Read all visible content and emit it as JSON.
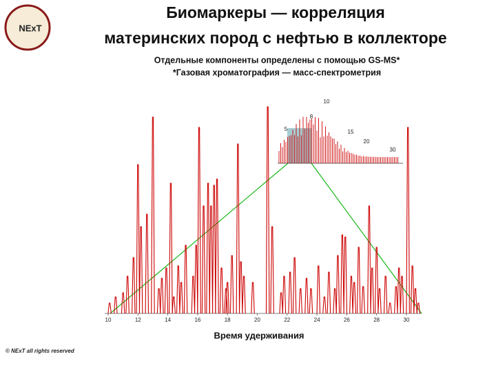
{
  "header": {
    "logo": "NExT",
    "title_lines": [
      "Биомаркеры — корреляция",
      "материнских пород с нефтью в коллекторе"
    ],
    "subtitle_lines": [
      "Отдельные компоненты определены с помощью GS-MS*",
      "*Газовая хроматография — масс-спектрометрия"
    ]
  },
  "chart_data": {
    "type": "chromatogram",
    "x_label": "Время удерживания",
    "color": "#cc0000",
    "xlim": [
      9.85,
      31.2
    ],
    "xticks": [
      10,
      12,
      14,
      16,
      18,
      20,
      22,
      24,
      26,
      28,
      30
    ],
    "ylim": [
      0,
      100
    ],
    "x": [
      10.1,
      10.5,
      11.0,
      11.3,
      11.7,
      12.0,
      12.2,
      12.6,
      13.0,
      13.4,
      13.6,
      13.9,
      14.2,
      14.4,
      14.7,
      14.9,
      15.2,
      15.7,
      15.9,
      16.1,
      16.4,
      16.7,
      16.9,
      17.1,
      17.3,
      17.6,
      17.9,
      18.0,
      18.3,
      18.7,
      18.9,
      19.1,
      19.7,
      20.7,
      21.0,
      21.6,
      21.8,
      22.2,
      22.5,
      22.9,
      23.3,
      23.6,
      24.1,
      24.5,
      24.8,
      25.2,
      25.4,
      25.7,
      25.9,
      26.3,
      26.5,
      26.8,
      27.1,
      27.5,
      27.7,
      28.0,
      28.2,
      28.6,
      28.9,
      29.3,
      29.5,
      29.7,
      30.1,
      30.4,
      30.6,
      30.8
    ],
    "values": [
      5,
      8,
      10,
      18,
      27,
      72,
      42,
      48,
      95,
      12,
      17,
      22,
      63,
      8,
      23,
      15,
      33,
      18,
      33,
      90,
      52,
      63,
      52,
      62,
      65,
      22,
      12,
      15,
      28,
      82,
      25,
      18,
      15,
      100,
      42,
      10,
      18,
      20,
      27,
      12,
      17,
      12,
      23,
      8,
      20,
      12,
      28,
      38,
      37,
      18,
      15,
      32,
      13,
      52,
      22,
      32,
      12,
      18,
      5,
      13,
      22,
      18,
      90,
      23,
      12,
      5
    ],
    "inset_labels": [
      5,
      8,
      10,
      15,
      20,
      30
    ]
  },
  "footer": "© NExT all rights reserved"
}
